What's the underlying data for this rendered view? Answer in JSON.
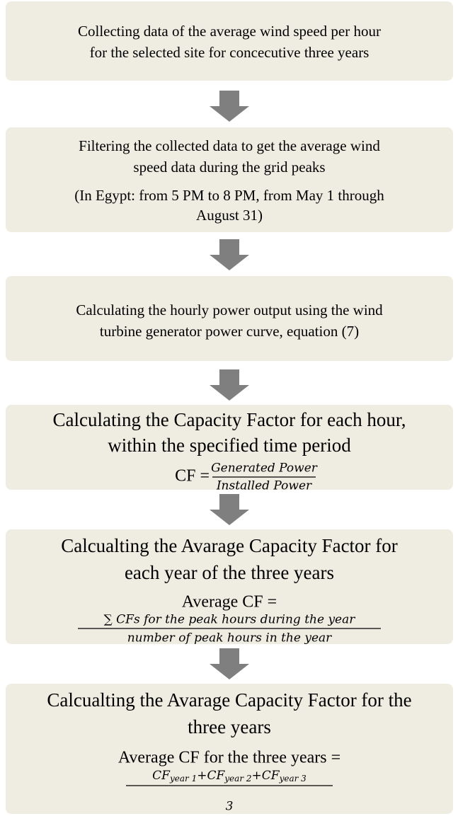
{
  "nodes": [
    {
      "lines": [
        "Collecting data of the average wind speed per hour",
        "for the selected site for concecutive three years"
      ]
    },
    {
      "lines": [
        "Filtering the collected data to get the average wind",
        "speed data during the grid peaks"
      ],
      "note_lines": [
        "(In Egypt: from 5 PM to 8 PM, from May 1 through",
        "August 31)"
      ]
    },
    {
      "lines": [
        "Calculating the hourly power output using the wind",
        "turbine generator power curve, equation (7)"
      ]
    },
    {
      "lines": [
        "Calculating the Capacity Factor for each hour,",
        "within the specified time period"
      ],
      "formula": {
        "lhs": "CF =",
        "numerator": "Generated Power",
        "denominator": "Installed Power"
      }
    },
    {
      "lines": [
        "Calcualting the Avarage Capacity Factor for",
        "each year of the three years"
      ],
      "formula": {
        "lhs": "Average CF =",
        "numerator": "∑ CFs for the peak hours during the year",
        "denominator": "number of peak hours in the year"
      }
    },
    {
      "lines": [
        "Calcualting the Avarage Capacity Factor for the",
        "three years"
      ],
      "formula": {
        "lhs": "Average CF for the three years =",
        "operator": "+",
        "numerator_terms": [
          {
            "base": "CF",
            "sub": "year 1"
          },
          {
            "base": "CF",
            "sub": "year 2"
          },
          {
            "base": "CF",
            "sub": "year 3"
          }
        ],
        "denominator": "3"
      }
    }
  ]
}
